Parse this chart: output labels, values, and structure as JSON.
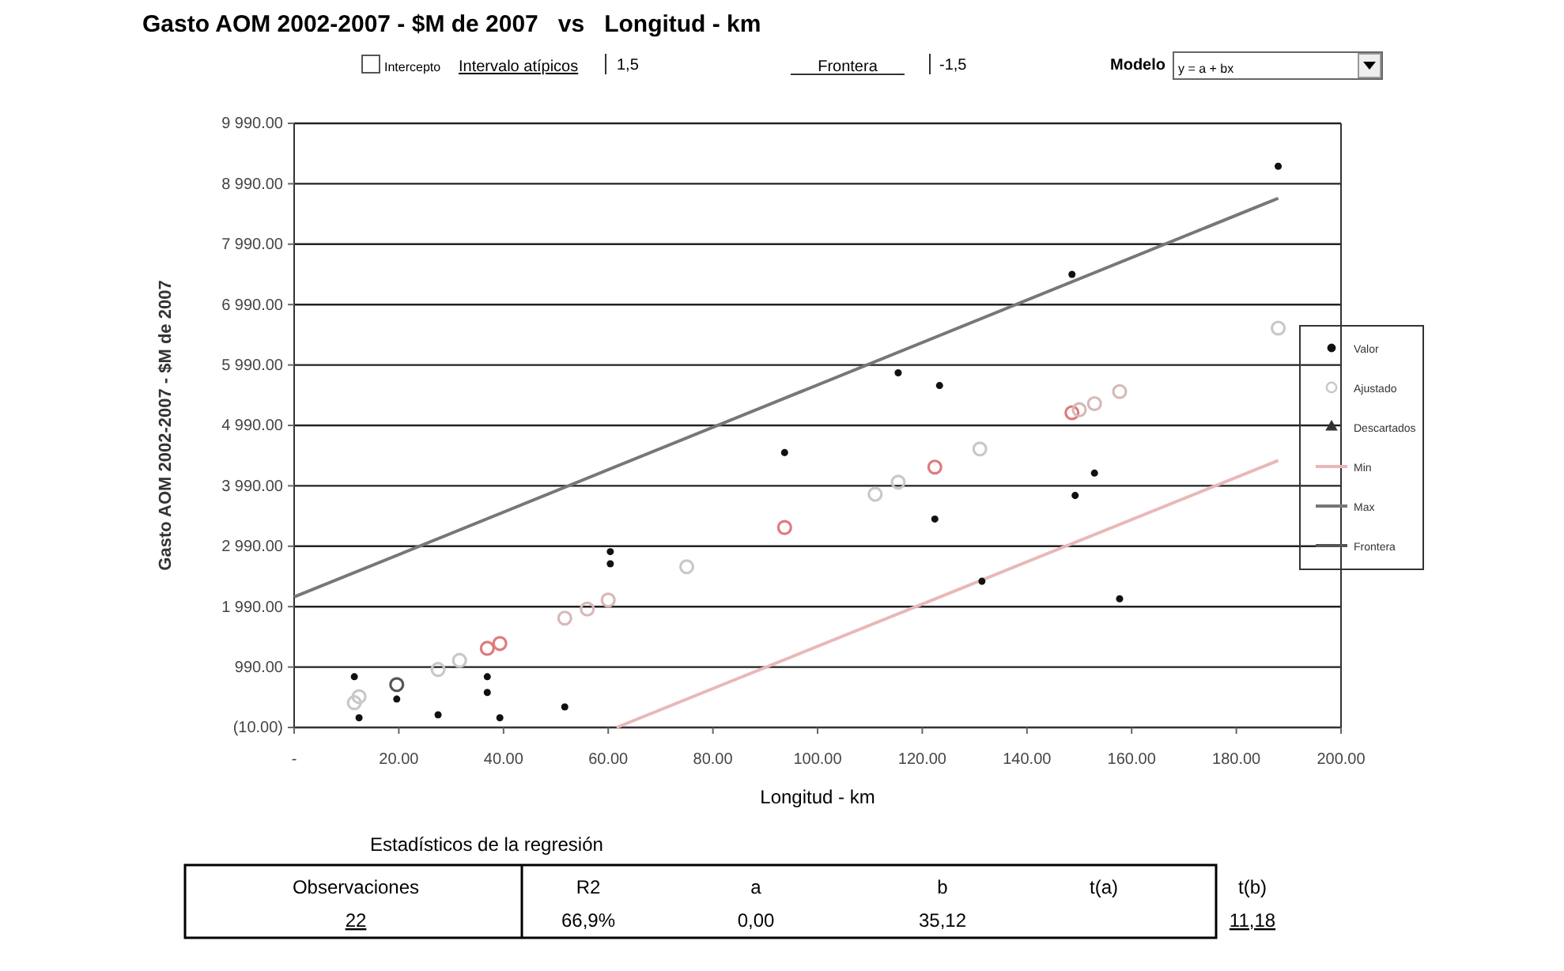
{
  "chart_data": {
    "type": "scatter",
    "title": "Gasto AOM 2002-2007 - $M de 2007   vs   Longitud - km",
    "xlabel": "Longitud - km",
    "ylabel": "Gasto AOM 2002-2007 - $M de 2007",
    "xlim": [
      0,
      200
    ],
    "xticks": [
      {
        "value": 0,
        "label": "-"
      },
      {
        "value": 20,
        "label": "20.00"
      },
      {
        "value": 40,
        "label": "40.00"
      },
      {
        "value": 60,
        "label": "60.00"
      },
      {
        "value": 80,
        "label": "80.00"
      },
      {
        "value": 100,
        "label": "100.00"
      },
      {
        "value": 120,
        "label": "120.00"
      },
      {
        "value": 140,
        "label": "140.00"
      },
      {
        "value": 160,
        "label": "160.00"
      },
      {
        "value": 180,
        "label": "180.00"
      },
      {
        "value": 200,
        "label": "200.00"
      }
    ],
    "ylim": [
      -10,
      9990
    ],
    "yticks": [
      {
        "value": -10,
        "label": "(10.00)"
      },
      {
        "value": 990,
        "label": "990.00"
      },
      {
        "value": 1990,
        "label": "1 990.00"
      },
      {
        "value": 2990,
        "label": "2 990.00"
      },
      {
        "value": 3990,
        "label": "3 990.00"
      },
      {
        "value": 4990,
        "label": "4 990.00"
      },
      {
        "value": 5990,
        "label": "5 990.00"
      },
      {
        "value": 6990,
        "label": "6 990.00"
      },
      {
        "value": 7990,
        "label": "7 990.00"
      },
      {
        "value": 8990,
        "label": "8 990.00"
      },
      {
        "value": 9990,
        "label": "9 990.00"
      }
    ],
    "grid": "y",
    "legend": "right",
    "series": [
      {
        "name": "Valor",
        "marker": "circle",
        "color": "#111111",
        "x": [
          11.5,
          12.4,
          19.6,
          27.5,
          36.9,
          36.9,
          39.3,
          51.7,
          60.4,
          60.4,
          93.7,
          115.4,
          122.4,
          123.3,
          131.4,
          148.6,
          149.2,
          152.9,
          157.7,
          188
        ],
        "values": [
          830,
          150,
          460,
          200,
          830,
          570,
          150,
          330,
          2900,
          2700,
          4540,
          5860,
          3440,
          5650,
          2410,
          7490,
          3830,
          4200,
          2120,
          9280
        ]
      },
      {
        "name": "Ajustado",
        "marker": "circle",
        "color": "#c8c8c8",
        "colors": [
          "#c8c8c8",
          "#c8c8c8",
          "#555555",
          "#c8c8c8",
          "#c8c8c8",
          "#e07a7a",
          "#e07a7a",
          "#d8b8b8",
          "#d8b8b8",
          "#d8b8b8",
          "#c8c8c8",
          "#e07a7a",
          "#c8c8c8",
          "#c8c8c8",
          "#e07a7a",
          "#c8c8c8",
          "#e07a7a",
          "#d8b8b8",
          "#d8b8b8",
          "#d8b8b8",
          "#c8c8c8"
        ],
        "x": [
          11.5,
          12.4,
          19.6,
          27.5,
          31.6,
          36.9,
          39.3,
          51.7,
          56,
          60,
          75,
          93.7,
          111,
          115.4,
          122.4,
          131,
          148.6,
          150,
          152.9,
          157.7,
          188
        ],
        "values": [
          400,
          500,
          700,
          950,
          1100,
          1300,
          1380,
          1800,
          1950,
          2100,
          2650,
          3300,
          3850,
          4050,
          4300,
          4600,
          5200,
          5250,
          5350,
          5550,
          6600
        ]
      },
      {
        "name": "Descartados",
        "marker": "triangle",
        "color": "#333333"
      },
      {
        "name": "Min",
        "type": "line",
        "color": "#e8b8b8",
        "x": [
          61.6,
          188
        ],
        "values": [
          -10,
          4410
        ]
      },
      {
        "name": "Max",
        "type": "line",
        "color": "#777777",
        "x": [
          0,
          188
        ],
        "values": [
          2150,
          8750
        ]
      },
      {
        "name": "Frontera",
        "type": "line",
        "color": "#555555"
      }
    ],
    "annotations": [
      "Intercepto",
      "Intervalo atípicos",
      "1,5",
      "Frontera",
      "-1,5",
      "Modelo",
      "y = a + bx",
      "Estadísticos de la regresión",
      "Observaciones",
      "R2",
      "a",
      "b",
      "t(a)",
      "t(b)",
      "22",
      "66,9%",
      "0,00",
      "35,12",
      "11,18"
    ]
  }
}
